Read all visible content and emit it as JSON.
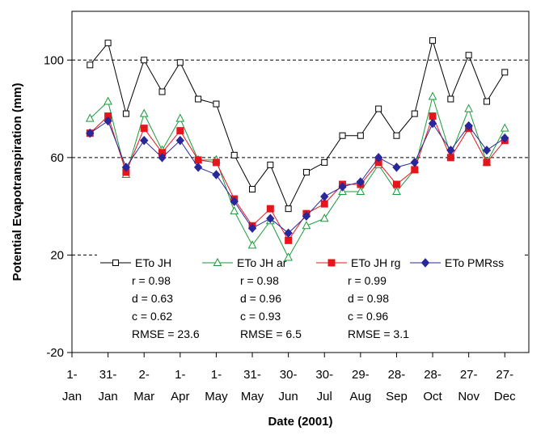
{
  "chart_data": {
    "type": "line",
    "xlabel": "Date (2001)",
    "ylabel": "Potential Evapotranspiration (mm)",
    "ylim": [
      -20,
      120
    ],
    "yticks": [
      -20,
      20,
      60,
      100
    ],
    "grid": "dashed horizontal lines at 20, 60, 100",
    "legend_placement": "bottom-left inside plot",
    "x_ticks": [
      {
        "top": "1-",
        "bottom": "Jan",
        "date": "2001-01-01"
      },
      {
        "top": "31-",
        "bottom": "Jan",
        "date": "2001-01-31"
      },
      {
        "top": "2-",
        "bottom": "Mar",
        "date": "2001-03-02"
      },
      {
        "top": "1-",
        "bottom": "Apr",
        "date": "2001-04-01"
      },
      {
        "top": "1-",
        "bottom": "May",
        "date": "2001-05-01"
      },
      {
        "top": "31-",
        "bottom": "May",
        "date": "2001-05-31"
      },
      {
        "top": "30-",
        "bottom": "Jun",
        "date": "2001-06-30"
      },
      {
        "top": "30-",
        "bottom": "Jul",
        "date": "2001-07-30"
      },
      {
        "top": "29-",
        "bottom": "Aug",
        "date": "2001-08-29"
      },
      {
        "top": "28-",
        "bottom": "Sep",
        "date": "2001-09-28"
      },
      {
        "top": "28-",
        "bottom": "Oct",
        "date": "2001-10-28"
      },
      {
        "top": "27-",
        "bottom": "Nov",
        "date": "2001-11-27"
      },
      {
        "top": "27-",
        "bottom": "Dec",
        "date": "2001-12-27"
      }
    ],
    "x": [
      "2001-01-16",
      "2001-01-31",
      "2001-02-15",
      "2001-03-02",
      "2001-03-17",
      "2001-04-01",
      "2001-04-16",
      "2001-05-01",
      "2001-05-16",
      "2001-05-31",
      "2001-06-15",
      "2001-06-30",
      "2001-07-15",
      "2001-07-30",
      "2001-08-14",
      "2001-08-29",
      "2001-09-13",
      "2001-09-28",
      "2001-10-13",
      "2001-10-28",
      "2001-11-12",
      "2001-11-27",
      "2001-12-12",
      "2001-12-27"
    ],
    "series": [
      {
        "name": "ETo JH",
        "color": "#000000",
        "marker": "open-square",
        "values": [
          98,
          107,
          78,
          100,
          87,
          99,
          84,
          82,
          61,
          47,
          57,
          39,
          54,
          58,
          69,
          69,
          80,
          69,
          78,
          108,
          84,
          102,
          83,
          95
        ]
      },
      {
        "name": "ETo JH  ar",
        "color": "#1a9a3a",
        "marker": "open-triangle",
        "values": [
          76,
          83,
          53,
          78,
          63,
          76,
          59,
          59,
          38,
          24,
          34,
          19,
          32,
          35,
          46,
          46,
          57,
          46,
          55,
          85,
          61,
          80,
          58,
          72
        ]
      },
      {
        "name": "ETo JH  rg",
        "color": "#e8141c",
        "marker": "filled-square",
        "values": [
          70,
          77,
          54,
          72,
          62,
          71,
          59,
          58,
          43,
          32,
          39,
          26,
          37,
          41,
          49,
          49,
          58,
          49,
          55,
          77,
          60,
          72,
          58,
          67
        ]
      },
      {
        "name": "ETo PMRss",
        "color": "#28289a",
        "marker": "filled-diamond",
        "values": [
          70,
          75,
          56,
          67,
          60,
          67,
          56,
          53,
          42,
          31,
          35,
          29,
          36,
          44,
          48,
          50,
          60,
          56,
          58,
          74,
          63,
          73,
          63,
          68
        ]
      }
    ],
    "stats": [
      {
        "r": "r = 0.98",
        "d": "d = 0.63",
        "c": "c = 0.62",
        "rmse": "RMSE = 23.6"
      },
      {
        "r": "r = 0.98",
        "d": "d = 0.96",
        "c": "c = 0.93",
        "rmse": "RMSE = 6.5"
      },
      {
        "r": "r = 0.99",
        "d": "d = 0.98",
        "c": "c = 0.96",
        "rmse": "RMSE = 3.1"
      }
    ]
  }
}
